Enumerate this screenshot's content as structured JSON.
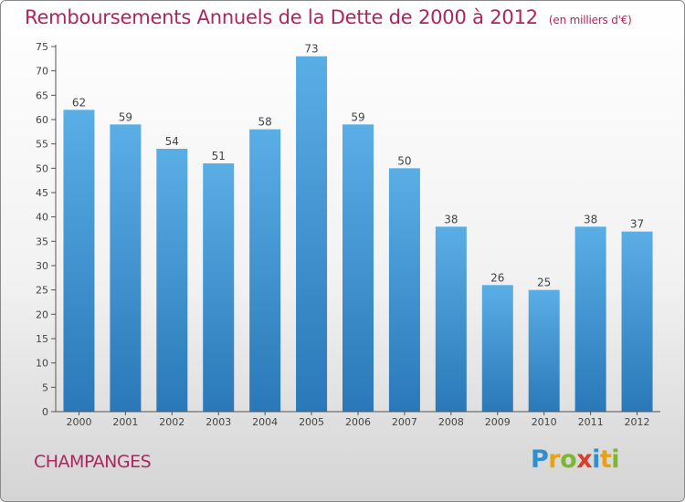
{
  "chart_data": {
    "type": "bar",
    "title": "Remboursements Annuels de la Dette de 2000 à 2012",
    "unit_note": "(en milliers d'€)",
    "categories": [
      "2000",
      "2001",
      "2002",
      "2003",
      "2004",
      "2005",
      "2006",
      "2007",
      "2008",
      "2009",
      "2010",
      "2011",
      "2012"
    ],
    "values": [
      62,
      59,
      54,
      51,
      58,
      73,
      59,
      50,
      38,
      26,
      25,
      38,
      37
    ],
    "ylim": [
      0,
      75
    ],
    "yticks": [
      0,
      5,
      10,
      15,
      20,
      25,
      30,
      35,
      40,
      45,
      50,
      55,
      60,
      65,
      70,
      75
    ],
    "grid": false,
    "bar_colors": {
      "top": "#5aaee6",
      "bottom": "#2a78b8"
    }
  },
  "commune": "CHAMPANGES",
  "logo": {
    "letters": [
      "P",
      "r",
      "o",
      "x",
      "i",
      "t",
      "i"
    ],
    "colors": [
      "#2f8fd0",
      "#e8a21a",
      "#7cb82f",
      "#d8402a",
      "#2f8fd0",
      "#e8a21a",
      "#7cb82f"
    ]
  }
}
